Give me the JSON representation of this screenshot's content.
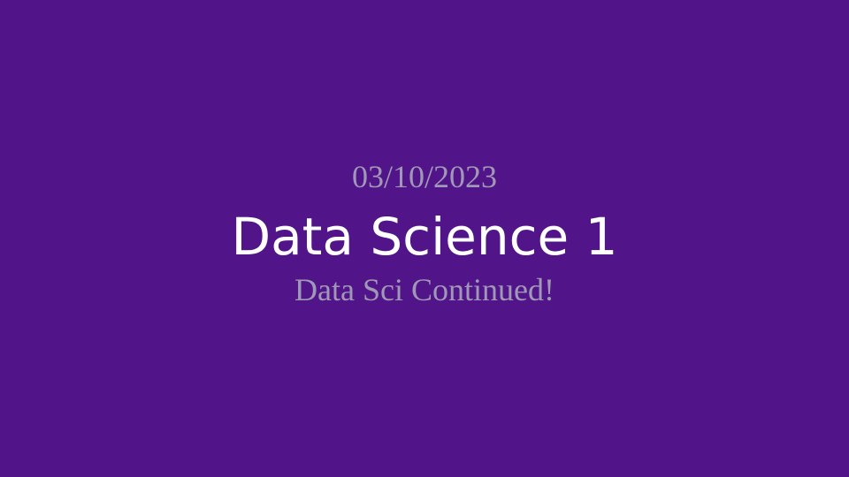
{
  "slide": {
    "date": "03/10/2023",
    "title": "Data Science 1",
    "subtitle": "Data Sci Continued!"
  },
  "colors": {
    "background": "#521589",
    "title": "#ffffff",
    "secondary_text": "#9f98b6"
  }
}
